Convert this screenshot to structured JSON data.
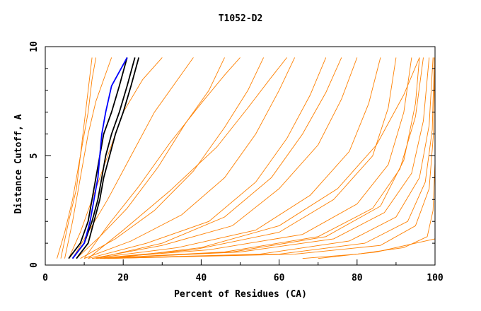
{
  "chart_data": {
    "type": "line",
    "title": "T1052-D2",
    "xlabel": "Percent of Residues (CA)",
    "ylabel": "Distance Cutoff, A",
    "xlim": [
      0,
      100
    ],
    "ylim": [
      0,
      10
    ],
    "x_ticks": [
      "0",
      "20",
      "40",
      "60",
      "80",
      "100"
    ],
    "y_ticks": [
      "0",
      "5",
      "10"
    ],
    "grid": false,
    "colors": {
      "models": "#ff8000",
      "highlight_black": "#000000",
      "highlight_blue": "#0000ff"
    },
    "series": [
      {
        "color": "#ff8000",
        "x": [
          3,
          5,
          7,
          9,
          10,
          11,
          12
        ],
        "y": [
          0.3,
          1.5,
          3,
          5,
          6.5,
          8,
          9.5
        ]
      },
      {
        "color": "#ff8000",
        "x": [
          4,
          6,
          8,
          9,
          11,
          12,
          13
        ],
        "y": [
          0.3,
          2,
          3.5,
          5,
          7,
          8.5,
          9.5
        ]
      },
      {
        "color": "#ff8000",
        "x": [
          5,
          7,
          9,
          11,
          13,
          15,
          17
        ],
        "y": [
          0.3,
          2,
          4,
          6,
          7.5,
          8.5,
          9.5
        ]
      },
      {
        "color": "#ff8000",
        "x": [
          6,
          9,
          12,
          16,
          20,
          25,
          30
        ],
        "y": [
          0.3,
          1.5,
          3,
          5,
          7,
          8.5,
          9.5
        ]
      },
      {
        "color": "#ff8000",
        "x": [
          7,
          11,
          16,
          22,
          28,
          34,
          38
        ],
        "y": [
          0.3,
          1.5,
          3,
          5,
          7,
          8.5,
          9.5
        ]
      },
      {
        "color": "#ff8000",
        "x": [
          8,
          14,
          21,
          29,
          36,
          42,
          46
        ],
        "y": [
          0.3,
          1.3,
          2.6,
          4.5,
          6.5,
          8,
          9.5
        ]
      },
      {
        "color": "#ff8000",
        "x": [
          9,
          18,
          28,
          38,
          46,
          52,
          56
        ],
        "y": [
          0.3,
          1.2,
          2.5,
          4.3,
          6.3,
          8,
          9.5
        ]
      },
      {
        "color": "#ff8000",
        "x": [
          10,
          22,
          35,
          46,
          54,
          60,
          64
        ],
        "y": [
          0.3,
          1.1,
          2.3,
          4,
          6,
          8,
          9.5
        ]
      },
      {
        "color": "#ff8000",
        "x": [
          11,
          26,
          42,
          54,
          62,
          68,
          72
        ],
        "y": [
          0.3,
          1,
          2,
          3.8,
          5.8,
          7.8,
          9.5
        ]
      },
      {
        "color": "#ff8000",
        "x": [
          12,
          30,
          48,
          60,
          70,
          76,
          80
        ],
        "y": [
          0.3,
          0.9,
          1.8,
          3.5,
          5.5,
          7.6,
          9.5
        ]
      },
      {
        "color": "#ff8000",
        "x": [
          12,
          34,
          54,
          68,
          78,
          83,
          86
        ],
        "y": [
          0.3,
          0.8,
          1.6,
          3.2,
          5.2,
          7.4,
          9.5
        ]
      },
      {
        "color": "#ff8000",
        "x": [
          13,
          38,
          60,
          74,
          84,
          88,
          90
        ],
        "y": [
          0.3,
          0.7,
          1.5,
          3,
          5,
          7.2,
          9.5
        ]
      },
      {
        "color": "#ff8000",
        "x": [
          13,
          42,
          66,
          80,
          88,
          92,
          94
        ],
        "y": [
          0.3,
          0.7,
          1.4,
          2.8,
          4.6,
          7,
          9.5
        ]
      },
      {
        "color": "#ff8000",
        "x": [
          14,
          46,
          70,
          84,
          91,
          95,
          97
        ],
        "y": [
          0.3,
          0.6,
          1.3,
          2.6,
          4.4,
          6.8,
          9.5
        ]
      },
      {
        "color": "#ff8000",
        "x": [
          14,
          50,
          74,
          87,
          94,
          97,
          98.5
        ],
        "y": [
          0.3,
          0.6,
          1.2,
          2.4,
          4.2,
          6.6,
          9.5
        ]
      },
      {
        "color": "#ff8000",
        "x": [
          15,
          55,
          78,
          90,
          96,
          98.5,
          99.5
        ],
        "y": [
          0.3,
          0.5,
          1.1,
          2.2,
          4,
          6.4,
          9.5
        ]
      },
      {
        "color": "#ff8000",
        "x": [
          16,
          60,
          82,
          93,
          97.5,
          99.3,
          99.8
        ],
        "y": [
          0.3,
          0.5,
          1,
          2,
          3.8,
          6.2,
          9.5
        ]
      },
      {
        "color": "#ff8000",
        "x": [
          16,
          64,
          86,
          95,
          98.5,
          99.6,
          100
        ],
        "y": [
          0.3,
          0.5,
          0.9,
          1.8,
          3.5,
          6,
          9.5
        ]
      },
      {
        "color": "#ff8000",
        "x": [
          17,
          40,
          60,
          75,
          85,
          92,
          96
        ],
        "y": [
          0.3,
          0.8,
          1.8,
          3.5,
          5.5,
          7.8,
          9.5
        ]
      },
      {
        "color": "#ff8000",
        "x": [
          11,
          20,
          32,
          44,
          52,
          58,
          62
        ],
        "y": [
          0.3,
          1.6,
          3.4,
          5.4,
          7.2,
          8.6,
          9.5
        ]
      },
      {
        "color": "#ff8000",
        "x": [
          10,
          16,
          24,
          32,
          40,
          46,
          50
        ],
        "y": [
          0.3,
          1.8,
          3.6,
          5.6,
          7.4,
          8.7,
          9.5
        ]
      },
      {
        "color": "#ff8000",
        "x": [
          13,
          30,
          46,
          58,
          66,
          72,
          76
        ],
        "y": [
          0.3,
          1,
          2.2,
          4,
          6,
          7.9,
          9.5
        ]
      },
      {
        "color": "#ff8000",
        "x": [
          15,
          48,
          72,
          86,
          92,
          95,
          96
        ],
        "y": [
          0.3,
          0.6,
          1.3,
          2.7,
          4.8,
          7.4,
          9.5
        ]
      },
      {
        "color": "#ff8000",
        "x": [
          66,
          80,
          92,
          98,
          99.5,
          100
        ],
        "y": [
          0.3,
          0.5,
          0.8,
          1.3,
          2.5,
          4.7
        ]
      },
      {
        "color": "#ff8000",
        "x": [
          70,
          85,
          95,
          100
        ],
        "y": [
          0.3,
          0.6,
          1.0,
          1.2
        ]
      },
      {
        "color": "#000000",
        "x": [
          6,
          9,
          11,
          12,
          13,
          14,
          15,
          17,
          19,
          21
        ],
        "y": [
          0.3,
          1,
          2,
          3,
          4,
          5,
          6,
          7,
          8.2,
          9.5
        ]
      },
      {
        "color": "#000000",
        "x": [
          7,
          10,
          12,
          13.5,
          14.5,
          15.5,
          17,
          19,
          21,
          23
        ],
        "y": [
          0.3,
          1,
          2,
          3,
          4,
          5,
          6,
          7,
          8.2,
          9.5
        ]
      },
      {
        "color": "#000000",
        "x": [
          8,
          11,
          12.5,
          14,
          15,
          16.5,
          18,
          20,
          22,
          24
        ],
        "y": [
          0.3,
          1,
          2,
          3,
          4,
          5,
          6,
          7,
          8.2,
          9.5
        ]
      },
      {
        "color": "#0000ff",
        "x": [
          7,
          10,
          11.5,
          12.5,
          13.5,
          14,
          14.5,
          15.5,
          17,
          21
        ],
        "y": [
          0.3,
          1,
          2,
          3,
          4,
          5,
          6,
          7,
          8.2,
          9.5
        ]
      }
    ]
  }
}
